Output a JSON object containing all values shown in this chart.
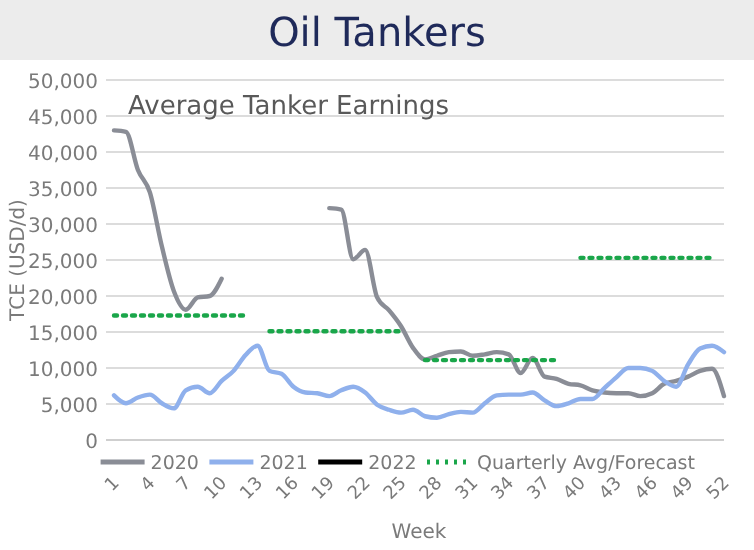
{
  "chart_data": {
    "type": "line",
    "title": "Oil Tankers",
    "subtitle": "Average Tanker Earnings",
    "xlabel": "Week",
    "ylabel": "TCE (USD/d)",
    "categories": [
      "1",
      null,
      null,
      "4",
      null,
      null,
      "7",
      null,
      null,
      "10",
      null,
      null,
      "13",
      null,
      null,
      "16",
      null,
      null,
      "19",
      null,
      null,
      "22",
      null,
      null,
      "25",
      null,
      null,
      "28",
      null,
      null,
      "31",
      null,
      null,
      "34",
      null,
      null,
      "37",
      null,
      null,
      "40",
      null,
      null,
      "43",
      null,
      null,
      "46",
      null,
      null,
      "49",
      null,
      null,
      "52"
    ],
    "ylim": [
      0,
      50000
    ],
    "yticks": [
      {
        "value": 0,
        "label": "0"
      },
      {
        "value": 5000,
        "label": "5,000"
      },
      {
        "value": 10000,
        "label": "10,000"
      },
      {
        "value": 15000,
        "label": "15,000"
      },
      {
        "value": 20000,
        "label": "20,000"
      },
      {
        "value": 25000,
        "label": "25,000"
      },
      {
        "value": 30000,
        "label": "30,000"
      },
      {
        "value": 35000,
        "label": "35,000"
      },
      {
        "value": 40000,
        "label": "40,000"
      },
      {
        "value": 45000,
        "label": "45,000"
      },
      {
        "value": 50000,
        "label": "50,000"
      }
    ],
    "grid": "y",
    "legend": "bottom",
    "marker": "none",
    "series": [
      {
        "name": "2020",
        "color": "#8a8d96",
        "line_style": "solid",
        "values": [
          43000,
          42800,
          37500,
          34400,
          26900,
          20700,
          18100,
          19800,
          20000,
          22400,
          null,
          null,
          null,
          null,
          null,
          null,
          null,
          null,
          32200,
          32000,
          25100,
          26400,
          19800,
          18000,
          15800,
          12800,
          11200,
          11700,
          12200,
          12300,
          11700,
          11900,
          12200,
          11900,
          9300,
          11400,
          8800,
          8500,
          7800,
          7600,
          6900,
          6600,
          6500,
          6500,
          6100,
          6500,
          7800,
          8200,
          8800,
          9600,
          9900,
          6100
        ]
      },
      {
        "name": "2021",
        "color": "#8fb0ec",
        "line_style": "solid",
        "values": [
          6200,
          5100,
          5900,
          6300,
          5100,
          4400,
          6900,
          7400,
          6500,
          8200,
          9600,
          11800,
          13100,
          9600,
          9200,
          7400,
          6600,
          6500,
          6100,
          6900,
          7400,
          6600,
          4900,
          4200,
          3800,
          4200,
          3300,
          3100,
          3600,
          3900,
          3800,
          5100,
          6200,
          6300,
          6300,
          6600,
          5500,
          4700,
          5100,
          5700,
          5700,
          7200,
          8700,
          10000,
          10000,
          9600,
          8200,
          7400,
          10500,
          12700,
          13100,
          12200
        ]
      },
      {
        "name": "2022",
        "color": "#000000",
        "line_style": "solid",
        "values": [
          null,
          null,
          null,
          null,
          null,
          null,
          null,
          null,
          null,
          null,
          null,
          null,
          null,
          null,
          null,
          null,
          null,
          null,
          null,
          null,
          null,
          null,
          null,
          null,
          null,
          null,
          null,
          null,
          null,
          null,
          null,
          null,
          null,
          null,
          null,
          null,
          null,
          null,
          null,
          null,
          null,
          null,
          null,
          null,
          null,
          null,
          null,
          null,
          null,
          null,
          null,
          null
        ]
      },
      {
        "name": "Quarterly Avg/Forecast",
        "color": "#1aa64a",
        "line_style": "dotted",
        "values": [
          17300,
          17300,
          17300,
          17300,
          17300,
          17300,
          17300,
          17300,
          17300,
          17300,
          17300,
          17300,
          null,
          15100,
          15100,
          15100,
          15100,
          15100,
          15100,
          15100,
          15100,
          15100,
          15100,
          15100,
          15100,
          null,
          11100,
          11100,
          11100,
          11100,
          11100,
          11100,
          11100,
          11100,
          11100,
          11100,
          11100,
          11100,
          null,
          25300,
          25300,
          25300,
          25300,
          25300,
          25300,
          25300,
          25300,
          25300,
          25300,
          25300,
          25300,
          null
        ]
      }
    ]
  }
}
